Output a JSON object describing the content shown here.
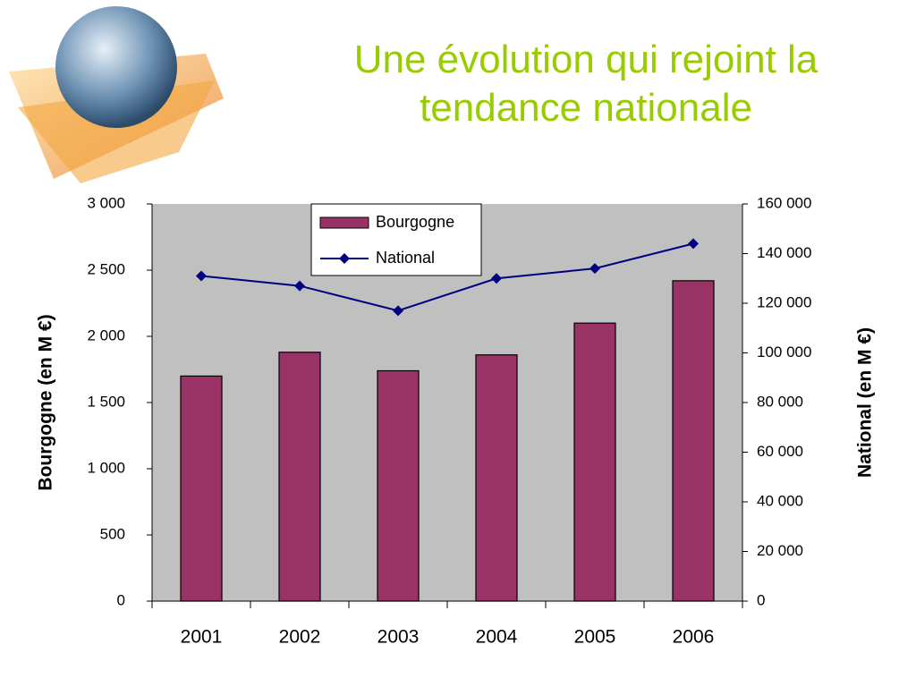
{
  "chart_data": {
    "type": "bar_line",
    "title": "Une évolution qui rejoint la tendance nationale",
    "ylabel": "Bourgogne (en M €)",
    "y2label": "National (en M €)",
    "categories": [
      "2001",
      "2002",
      "2003",
      "2004",
      "2005",
      "2006"
    ],
    "series": [
      {
        "name": "Bourgogne",
        "type": "bar",
        "color": "#993366",
        "values": [
          1700,
          1880,
          1740,
          1860,
          2100,
          2420
        ]
      },
      {
        "name": "National",
        "type": "line",
        "axis": "y2",
        "color": "#000080",
        "values": [
          131000,
          127000,
          117000,
          130000,
          134000,
          144000
        ]
      }
    ],
    "ylim": [
      0,
      3000
    ],
    "yticks": [
      0,
      500,
      {
        "value": 1000,
        "label": "1 000"
      },
      {
        "value": 1500,
        "label": "1 500"
      },
      {
        "value": 2000,
        "label": "2 000"
      },
      {
        "value": 2500,
        "label": "2 500"
      },
      {
        "value": 3000,
        "label": "3 000"
      }
    ],
    "y2lim": [
      0,
      160000
    ],
    "y2ticks": [
      0,
      {
        "value": 20000,
        "label": "20 000"
      },
      {
        "value": 40000,
        "label": "40 000"
      },
      {
        "value": 60000,
        "label": "60 000"
      },
      {
        "value": 80000,
        "label": "80 000"
      },
      {
        "value": 100000,
        "label": "100 000"
      },
      {
        "value": 120000,
        "label": "120 000"
      },
      {
        "value": 140000,
        "label": "140 000"
      },
      {
        "value": 160000,
        "label": "160 000"
      }
    ],
    "legend": "top-left",
    "plot_background": "#c0c0c0"
  }
}
